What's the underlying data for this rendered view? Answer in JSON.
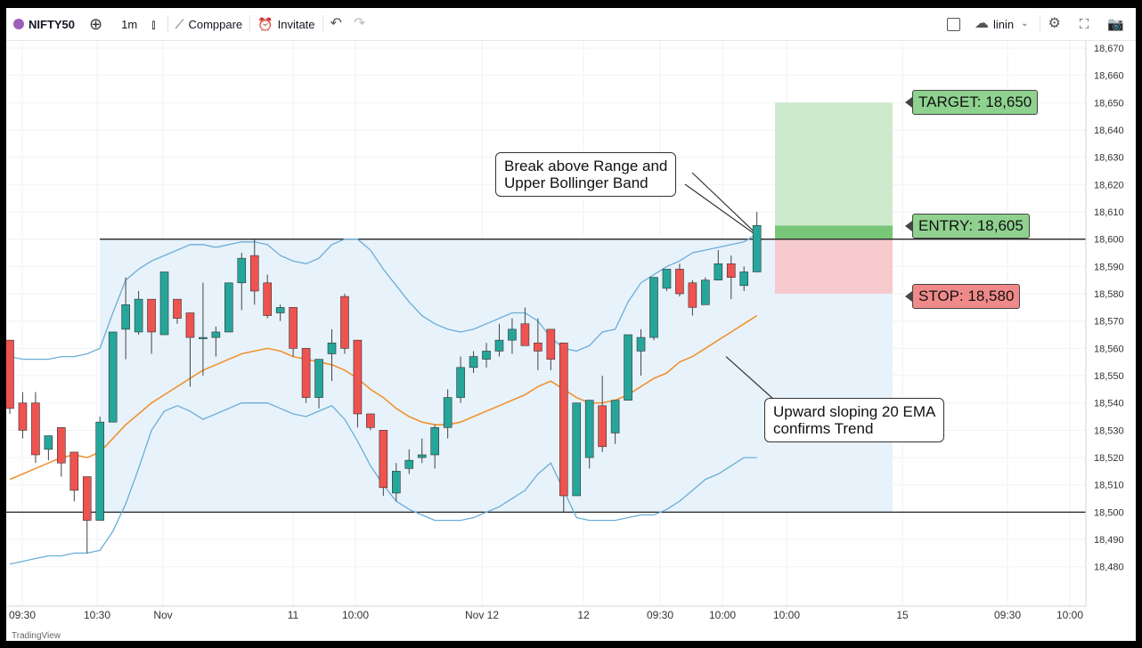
{
  "toolbar": {
    "symbol": "NIFTY50",
    "interval": "1m",
    "compare_label": "Comppare",
    "invite_label": "Invitate",
    "cloud_label": "linin"
  },
  "chart_data": {
    "type": "candlestick",
    "y_range": [
      18475,
      18675
    ],
    "y_ticks": [
      18670,
      18660,
      18650,
      18640,
      18630,
      18620,
      18610,
      18600,
      18590,
      18580,
      18570,
      18560,
      18550,
      18540,
      18530,
      18520,
      18510,
      18500,
      18490,
      18480
    ],
    "x_labels": [
      "09:30",
      "10:30",
      "Nov",
      "11",
      "10:00",
      "Nov 12",
      "12",
      "09:30",
      "10:00",
      "10:00",
      "15",
      "09:30",
      "10:00"
    ],
    "candles": [
      {
        "o": 18563,
        "h": 18563,
        "l": 18536,
        "c": 18538
      },
      {
        "o": 18540,
        "h": 18544,
        "l": 18527,
        "c": 18530
      },
      {
        "o": 18540,
        "h": 18544,
        "l": 18518,
        "c": 18521
      },
      {
        "o": 18523,
        "h": 18528,
        "l": 18519,
        "c": 18528
      },
      {
        "o": 18531,
        "h": 18531,
        "l": 18513,
        "c": 18518
      },
      {
        "o": 18522,
        "h": 18522,
        "l": 18504,
        "c": 18508
      },
      {
        "o": 18513,
        "h": 18513,
        "l": 18485,
        "c": 18497
      },
      {
        "o": 18497,
        "h": 18535,
        "l": 18497,
        "c": 18533
      },
      {
        "o": 18533,
        "h": 18566,
        "l": 18533,
        "c": 18566
      },
      {
        "o": 18567,
        "h": 18586,
        "l": 18556,
        "c": 18576
      },
      {
        "o": 18566,
        "h": 18581,
        "l": 18565,
        "c": 18578
      },
      {
        "o": 18578,
        "h": 18578,
        "l": 18558,
        "c": 18566
      },
      {
        "o": 18565,
        "h": 18588,
        "l": 18565,
        "c": 18588
      },
      {
        "o": 18578,
        "h": 18578,
        "l": 18569,
        "c": 18571
      },
      {
        "o": 18573,
        "h": 18573,
        "l": 18546,
        "c": 18564
      },
      {
        "o": 18564,
        "h": 18584,
        "l": 18550,
        "c": 18564
      },
      {
        "o": 18564,
        "h": 18568,
        "l": 18557,
        "c": 18566
      },
      {
        "o": 18566,
        "h": 18584,
        "l": 18566,
        "c": 18584
      },
      {
        "o": 18584,
        "h": 18595,
        "l": 18574,
        "c": 18593
      },
      {
        "o": 18594,
        "h": 18600,
        "l": 18576,
        "c": 18581
      },
      {
        "o": 18584,
        "h": 18587,
        "l": 18571,
        "c": 18572
      },
      {
        "o": 18573,
        "h": 18576,
        "l": 18570,
        "c": 18575
      },
      {
        "o": 18575,
        "h": 18575,
        "l": 18557,
        "c": 18560
      },
      {
        "o": 18560,
        "h": 18560,
        "l": 18540,
        "c": 18542
      },
      {
        "o": 18542,
        "h": 18556,
        "l": 18538,
        "c": 18556
      },
      {
        "o": 18558,
        "h": 18567,
        "l": 18548,
        "c": 18562
      },
      {
        "o": 18579,
        "h": 18580,
        "l": 18558,
        "c": 18560
      },
      {
        "o": 18563,
        "h": 18563,
        "l": 18531,
        "c": 18536
      },
      {
        "o": 18536,
        "h": 18536,
        "l": 18530,
        "c": 18531
      },
      {
        "o": 18530,
        "h": 18530,
        "l": 18506,
        "c": 18509
      },
      {
        "o": 18507,
        "h": 18518,
        "l": 18504,
        "c": 18515
      },
      {
        "o": 18516,
        "h": 18523,
        "l": 18514,
        "c": 18519
      },
      {
        "o": 18520,
        "h": 18527,
        "l": 18518,
        "c": 18521
      },
      {
        "o": 18521,
        "h": 18532,
        "l": 18516,
        "c": 18531
      },
      {
        "o": 18531,
        "h": 18545,
        "l": 18527,
        "c": 18542
      },
      {
        "o": 18542,
        "h": 18557,
        "l": 18540,
        "c": 18553
      },
      {
        "o": 18553,
        "h": 18559,
        "l": 18551,
        "c": 18557
      },
      {
        "o": 18556,
        "h": 18562,
        "l": 18553,
        "c": 18559
      },
      {
        "o": 18559,
        "h": 18569,
        "l": 18557,
        "c": 18563
      },
      {
        "o": 18563,
        "h": 18571,
        "l": 18558,
        "c": 18567
      },
      {
        "o": 18569,
        "h": 18575,
        "l": 18562,
        "c": 18561
      },
      {
        "o": 18562,
        "h": 18571,
        "l": 18552,
        "c": 18559
      },
      {
        "o": 18567,
        "h": 18567,
        "l": 18552,
        "c": 18556
      },
      {
        "o": 18562,
        "h": 18562,
        "l": 18500,
        "c": 18506
      },
      {
        "o": 18506,
        "h": 18540,
        "l": 18506,
        "c": 18540
      },
      {
        "o": 18520,
        "h": 18541,
        "l": 18516,
        "c": 18541
      },
      {
        "o": 18539,
        "h": 18550,
        "l": 18522,
        "c": 18524
      },
      {
        "o": 18529,
        "h": 18541,
        "l": 18525,
        "c": 18541
      },
      {
        "o": 18541,
        "h": 18565,
        "l": 18541,
        "c": 18565
      },
      {
        "o": 18559,
        "h": 18567,
        "l": 18550,
        "c": 18564
      },
      {
        "o": 18564,
        "h": 18586,
        "l": 18563,
        "c": 18586
      },
      {
        "o": 18582,
        "h": 18589,
        "l": 18581,
        "c": 18589
      },
      {
        "o": 18589,
        "h": 18591,
        "l": 18579,
        "c": 18580
      },
      {
        "o": 18584,
        "h": 18585,
        "l": 18572,
        "c": 18575
      },
      {
        "o": 18576,
        "h": 18586,
        "l": 18576,
        "c": 18585
      },
      {
        "o": 18585,
        "h": 18596,
        "l": 18585,
        "c": 18591
      },
      {
        "o": 18591,
        "h": 18594,
        "l": 18578,
        "c": 18586
      },
      {
        "o": 18583,
        "h": 18590,
        "l": 18581,
        "c": 18588
      },
      {
        "o": 18588,
        "h": 18610,
        "l": 18588,
        "c": 18605
      }
    ],
    "ema20": [
      18512,
      18514,
      18516,
      18518,
      18520,
      18521,
      18520,
      18522,
      18527,
      18532,
      18536,
      18540,
      18543,
      18546,
      18549,
      18552,
      18554,
      18556,
      18558,
      18559,
      18560,
      18559,
      18557,
      18556,
      18555,
      18554,
      18552,
      18549,
      18545,
      18542,
      18538,
      18535,
      18533,
      18532,
      18532,
      18533,
      18535,
      18537,
      18539,
      18541,
      18543,
      18546,
      18548,
      18545,
      18542,
      18540,
      18540,
      18541,
      18543,
      18546,
      18549,
      18551,
      18555,
      18557,
      18560,
      18563,
      18566,
      18569,
      18572
    ],
    "bb_upper": [
      18557,
      18556,
      18556,
      18556,
      18557,
      18557,
      18558,
      18560,
      18573,
      18585,
      18589,
      18592,
      18594,
      18596,
      18598,
      18598,
      18597,
      18598,
      18599,
      18599,
      18598,
      18594,
      18592,
      18591,
      18593,
      18598,
      18600,
      18600,
      18596,
      18589,
      18583,
      18577,
      18572,
      18569,
      18567,
      18566,
      18567,
      18569,
      18571,
      18573,
      18573,
      18570,
      18564,
      18560,
      18559,
      18561,
      18566,
      18567,
      18577,
      18584,
      18587,
      18590,
      18592,
      18595,
      18596,
      18597,
      18598,
      18599,
      18602
    ],
    "bb_lower": [
      18481,
      18482,
      18483,
      18484,
      18484,
      18485,
      18485,
      18486,
      18493,
      18503,
      18516,
      18530,
      18537,
      18539,
      18537,
      18534,
      18536,
      18538,
      18540,
      18540,
      18540,
      18538,
      18536,
      18535,
      18537,
      18539,
      18534,
      18526,
      18517,
      18510,
      18504,
      18501,
      18499,
      18497,
      18497,
      18497,
      18498,
      18500,
      18502,
      18505,
      18508,
      18514,
      18518,
      18508,
      18498,
      18497,
      18497,
      18497,
      18498,
      18499,
      18499,
      18501,
      18504,
      18508,
      18512,
      18514,
      18517,
      18520,
      18520
    ],
    "range_high": 18600,
    "range_low": 18500,
    "target": 18650,
    "entry": 18605,
    "stop": 18580,
    "annotations": [
      "Break above Range and\nUpper Bollinger Band",
      "Upward sloping 20 EMA\nconfirms Trend"
    ],
    "labels": {
      "target": "TARGET: 18,650",
      "entry": "ENTRY: 18,605",
      "stop": "STOP: 18,580"
    },
    "colors": {
      "up": "#26a69a",
      "down": "#ef5350",
      "ema": "#f0922e",
      "bands": "#6aaed6",
      "band_fill": "#e8f2fb",
      "target_fill": "#cdeacd",
      "stop_fill": "#f6c9cc",
      "target_tag": "#8fd18f",
      "stop_tag": "#f08a8a"
    }
  },
  "watermark": "TradingView"
}
